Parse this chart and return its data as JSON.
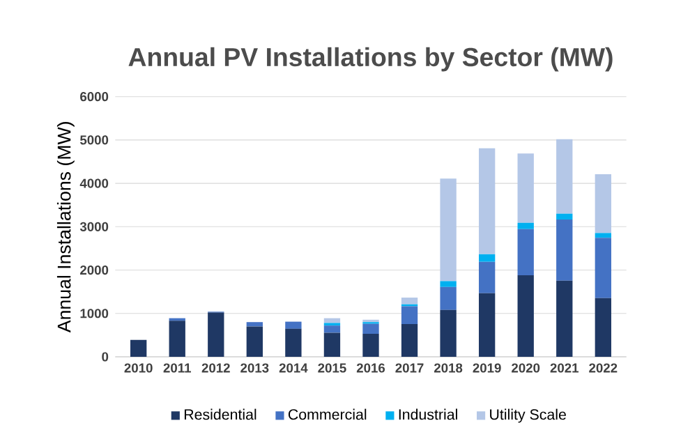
{
  "chart_data": {
    "type": "bar",
    "stacked": true,
    "title": "Annual PV Installations by Sector (MW)",
    "ylabel": "Annual Installations (MW)",
    "categories": [
      "2010",
      "2011",
      "2012",
      "2013",
      "2014",
      "2015",
      "2016",
      "2017",
      "2018",
      "2019",
      "2020",
      "2021",
      "2022"
    ],
    "series": [
      {
        "name": "Residential",
        "color": "#1f3864",
        "values": [
          390,
          830,
          1020,
          700,
          645,
          555,
          530,
          755,
          1080,
          1465,
          1880,
          1755,
          1355
        ]
      },
      {
        "name": "Commercial",
        "color": "#4472c4",
        "values": [
          0,
          60,
          20,
          100,
          165,
          165,
          230,
          410,
          530,
          725,
          1065,
          1410,
          1390
        ]
      },
      {
        "name": "Industrial",
        "color": "#00b0f0",
        "values": [
          0,
          0,
          0,
          0,
          0,
          60,
          40,
          45,
          135,
          175,
          145,
          135,
          110
        ]
      },
      {
        "name": "Utility Scale",
        "color": "#b4c7e7",
        "values": [
          0,
          0,
          0,
          0,
          0,
          110,
          55,
          155,
          2365,
          2445,
          1600,
          1720,
          1355
        ]
      }
    ],
    "ylim": [
      0,
      6000
    ],
    "yticks": [
      0,
      1000,
      2000,
      3000,
      4000,
      5000,
      6000
    ],
    "grid": "y",
    "legend": "bottom"
  }
}
